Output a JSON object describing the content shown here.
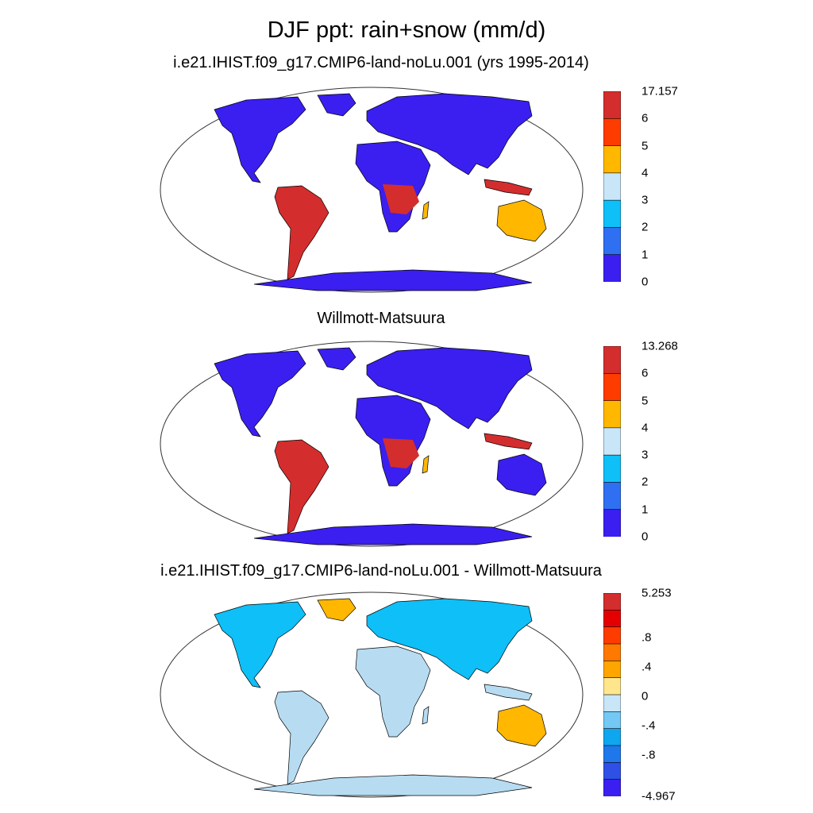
{
  "figure": {
    "title": "DJF ppt: rain+snow (mm/d)"
  },
  "panels": [
    {
      "title": "i.e21.IHIST.f09_g17.CMIP6-land-noLu.001 (yrs 1995-2014)",
      "colorbar": {
        "max_label": "17.157",
        "tick_labels": [
          "6",
          "5",
          "4",
          "3",
          "2",
          "1",
          "0"
        ],
        "colors": [
          "#d42d2d",
          "#ff3c00",
          "#ffb700",
          "#c9e6f8",
          "#0fbff7",
          "#2f6ff2",
          "#3a1ff0"
        ]
      }
    },
    {
      "title": "Willmott-Matsuura",
      "colorbar": {
        "max_label": "13.268",
        "tick_labels": [
          "6",
          "5",
          "4",
          "3",
          "2",
          "1",
          "0"
        ],
        "colors": [
          "#d42d2d",
          "#ff3c00",
          "#ffb700",
          "#c9e6f8",
          "#0fbff7",
          "#2f6ff2",
          "#3a1ff0"
        ]
      }
    },
    {
      "title": "i.e21.IHIST.f09_g17.CMIP6-land-noLu.001 - Willmott-Matsuura",
      "colorbar": {
        "max_label": "5.253",
        "tick_labels": [
          "",
          ".8",
          "",
          ".4",
          "",
          "0",
          "",
          "-.4",
          "",
          "-.8",
          "",
          "-4.967"
        ],
        "colors": [
          "#d42d2d",
          "#e40000",
          "#ff3c00",
          "#ff7800",
          "#ffa500",
          "#ffe68c",
          "#c9e6f8",
          "#73c8f5",
          "#0fa6f0",
          "#1e78eb",
          "#2f50e6",
          "#3a1ff0"
        ]
      }
    }
  ],
  "map_colors": {
    "dry": "#3a1ff0",
    "wet": "#d42d2d",
    "mid": "#ffb700",
    "neutral_diff": "#b7dcf2",
    "pos_diff": "#ffb700",
    "neg_diff": "#0fbff7",
    "outline": "#000000",
    "ellipse": "#333333"
  }
}
